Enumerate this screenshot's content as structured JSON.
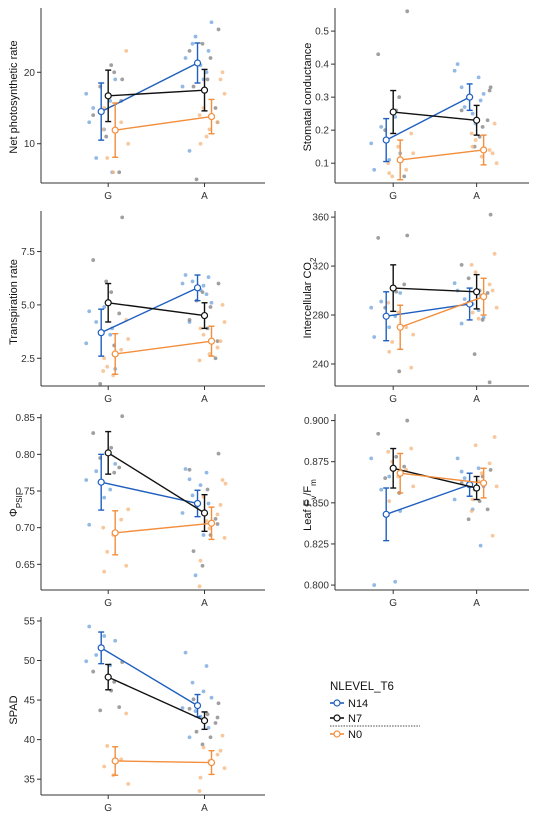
{
  "colors": {
    "N14": "#1f5fbf",
    "N7": "#111111",
    "N0": "#f28e3c",
    "raw_N14": "#6fa3dc",
    "raw_N7": "#808080",
    "raw_N0": "#f6b47a"
  },
  "legend": {
    "title": "NLEVEL_T6",
    "items": [
      {
        "key": "N14",
        "label": "N14"
      },
      {
        "key": "N7",
        "label": "N7"
      },
      {
        "key": "N0",
        "label": "N0"
      }
    ]
  },
  "chart_data": [
    {
      "type": "line",
      "id": "net-photosynthetic-rate",
      "ylabel": "Net photosynthetic rate",
      "categories": [
        "G",
        "A"
      ],
      "ylim": [
        4.5,
        29
      ],
      "yticks": [
        10,
        20
      ],
      "ytick_labels": [
        "10",
        "20"
      ],
      "series": [
        {
          "name": "N14",
          "means": [
            14.5,
            21.3
          ],
          "err": [
            4.0,
            2.8
          ],
          "raw": [
            [
              13,
              16,
              8,
              19,
              17,
              12,
              6,
              15
            ],
            [
              22,
              20,
              24,
              27,
              18,
              21,
              23,
              9,
              19,
              25
            ]
          ]
        },
        {
          "name": "N7",
          "means": [
            16.7,
            17.5
          ],
          "err": [
            3.6,
            2.9
          ],
          "raw": [
            [
              19,
              14,
              21,
              6,
              18,
              20,
              11,
              16
            ],
            [
              26,
              23,
              19,
              15,
              5,
              22,
              24,
              13,
              18
            ]
          ]
        },
        {
          "name": "N0",
          "means": [
            11.9,
            13.8
          ],
          "err": [
            3.8,
            2.4
          ],
          "raw": [
            [
              23,
              8,
              13,
              6,
              10,
              15,
              12
            ],
            [
              20,
              15,
              13,
              12,
              17,
              10,
              14,
              19,
              11
            ]
          ]
        }
      ]
    },
    {
      "type": "line",
      "id": "stomatal-conductance",
      "ylabel": "Stomatal conductance",
      "categories": [
        "G",
        "A"
      ],
      "ylim": [
        0.04,
        0.57
      ],
      "yticks": [
        0.1,
        0.2,
        0.3,
        0.4,
        0.5
      ],
      "ytick_labels": [
        "0.1",
        "0.2",
        "0.3",
        "0.4",
        "0.5"
      ],
      "series": [
        {
          "name": "N14",
          "means": [
            0.17,
            0.3
          ],
          "err": [
            0.065,
            0.04
          ],
          "raw": [
            [
              0.08,
              0.24,
              0.21,
              0.13,
              0.16,
              0.11
            ],
            [
              0.4,
              0.36,
              0.27,
              0.31,
              0.38,
              0.25,
              0.29,
              0.33,
              0.22
            ]
          ]
        },
        {
          "name": "N7",
          "means": [
            0.255,
            0.23
          ],
          "err": [
            0.065,
            0.045
          ],
          "raw": [
            [
              0.56,
              0.43,
              0.26,
              0.06,
              0.2,
              0.3
            ],
            [
              0.33,
              0.26,
              0.18,
              0.23,
              0.3,
              0.21,
              0.15,
              0.32
            ]
          ]
        },
        {
          "name": "N0",
          "means": [
            0.11,
            0.14
          ],
          "err": [
            0.06,
            0.045
          ],
          "raw": [
            [
              0.19,
              0.06,
              0.08,
              0.15,
              0.13,
              0.07,
              0.1
            ],
            [
              0.22,
              0.17,
              0.14,
              0.12,
              0.1,
              0.15,
              0.19,
              0.13
            ]
          ]
        }
      ]
    },
    {
      "type": "line",
      "id": "transpiration-rate",
      "ylabel": "Transpiration rate",
      "categories": [
        "G",
        "A"
      ],
      "ylim": [
        1.2,
        9.4
      ],
      "yticks": [
        2.5,
        5.0,
        7.5
      ],
      "ytick_labels": [
        "2.5",
        "5.0",
        "7.5"
      ],
      "series": [
        {
          "name": "N14",
          "means": [
            3.7,
            5.8
          ],
          "err": [
            1.1,
            0.6
          ],
          "raw": [
            [
              4.7,
              3.6,
              4.2,
              2.0,
              3.2,
              4.9,
              3.9
            ],
            [
              6.4,
              5.5,
              6.1,
              5.1,
              6.0,
              5.7,
              6.3,
              4.2,
              5.9
            ]
          ]
        },
        {
          "name": "N7",
          "means": [
            5.1,
            4.5
          ],
          "err": [
            0.9,
            0.6
          ],
          "raw": [
            [
              9.1,
              7.1,
              5.6,
              4.6,
              1.3,
              3.1,
              6.1
            ],
            [
              6.0,
              4.3,
              3.9,
              2.5,
              5.2,
              4.9,
              5.6,
              3.3
            ]
          ]
        },
        {
          "name": "N0",
          "means": [
            2.7,
            3.3
          ],
          "err": [
            0.95,
            0.7
          ],
          "raw": [
            [
              4.3,
              2.1,
              2.9,
              1.7,
              3.4,
              2.5,
              1.9
            ],
            [
              5.0,
              3.6,
              3.0,
              2.7,
              4.2,
              3.9,
              2.4,
              3.3
            ]
          ]
        }
      ]
    },
    {
      "type": "line",
      "id": "intercellular-co2",
      "ylabel": "Intercellular CO₂",
      "categories": [
        "G",
        "A"
      ],
      "ylim": [
        222,
        365
      ],
      "yticks": [
        240,
        280,
        320,
        360
      ],
      "ytick_labels": [
        "240",
        "280",
        "320",
        "360"
      ],
      "series": [
        {
          "name": "N14",
          "means": [
            279,
            289
          ],
          "err": [
            20,
            13
          ],
          "raw": [
            [
              262,
              279,
              291,
              298,
              286,
              270
            ],
            [
              300,
              284,
              293,
              278,
              306,
              289,
              296,
              273
            ]
          ]
        },
        {
          "name": "N7",
          "means": [
            302,
            299
          ],
          "err": [
            19,
            14
          ],
          "raw": [
            [
              345,
              343,
              299,
              305,
              286,
              234
            ],
            [
              362,
              321,
              300,
              298,
              310,
              276,
              248,
              225
            ]
          ]
        },
        {
          "name": "N0",
          "means": [
            270,
            295
          ],
          "err": [
            18,
            15
          ],
          "raw": [
            [
              237,
              258,
              270,
              282,
              264,
              250,
              290
            ],
            [
              330,
              315,
              305,
              296,
              286,
              282,
              321,
              300,
              277
            ]
          ]
        }
      ]
    },
    {
      "type": "line",
      "id": "phi-psii",
      "ylabel": "ΦPSII",
      "categories": [
        "G",
        "A"
      ],
      "ylim": [
        0.615,
        0.855
      ],
      "yticks": [
        0.65,
        0.7,
        0.75,
        0.8,
        0.85
      ],
      "ytick_labels": [
        "0.65",
        "0.70",
        "0.75",
        "0.80",
        "0.85"
      ],
      "series": [
        {
          "name": "N14",
          "means": [
            0.762,
            0.733
          ],
          "err": [
            0.038,
            0.018
          ],
          "raw": [
            [
              0.704,
              0.752,
              0.777,
              0.787,
              0.765,
              0.741
            ],
            [
              0.78,
              0.775,
              0.744,
              0.708,
              0.72,
              0.758,
              0.733,
              0.766,
              0.69,
              0.635
            ]
          ]
        },
        {
          "name": "N7",
          "means": [
            0.802,
            0.72
          ],
          "err": [
            0.029,
            0.025
          ],
          "raw": [
            [
              0.852,
              0.829,
              0.809,
              0.782,
              0.795,
              0.775
            ],
            [
              0.801,
              0.779,
              0.752,
              0.712,
              0.73,
              0.69,
              0.648,
              0.705,
              0.668
            ]
          ]
        },
        {
          "name": "N0",
          "means": [
            0.693,
            0.706
          ],
          "err": [
            0.03,
            0.022
          ],
          "raw": [
            [
              0.648,
              0.667,
              0.711,
              0.69,
              0.725,
              0.64,
              0.7
            ],
            [
              0.765,
              0.742,
              0.718,
              0.699,
              0.686,
              0.655,
              0.62,
              0.731,
              0.709,
              0.76
            ]
          ]
        }
      ]
    },
    {
      "type": "line",
      "id": "leaf-fv-fm",
      "ylabel": "Leaf Fv/Fm",
      "categories": [
        "G",
        "A"
      ],
      "ylim": [
        0.797,
        0.904
      ],
      "yticks": [
        0.8,
        0.825,
        0.85,
        0.875,
        0.9
      ],
      "ytick_labels": [
        "0.800",
        "0.825",
        "0.850",
        "0.875",
        "0.900"
      ],
      "series": [
        {
          "name": "N14",
          "means": [
            0.843,
            0.861
          ],
          "err": [
            0.016,
            0.007
          ],
          "raw": [
            [
              0.8,
              0.802,
              0.858,
              0.845,
              0.877,
              0.866
            ],
            [
              0.877,
              0.871,
              0.865,
              0.86,
              0.852,
              0.846,
              0.824,
              0.869
            ]
          ]
        },
        {
          "name": "N7",
          "means": [
            0.871,
            0.859
          ],
          "err": [
            0.012,
            0.007
          ],
          "raw": [
            [
              0.9,
              0.892,
              0.878,
              0.872,
              0.865,
              0.856
            ],
            [
              0.87,
              0.862,
              0.851,
              0.846,
              0.84,
              0.866,
              0.858
            ]
          ]
        },
        {
          "name": "N0",
          "means": [
            0.868,
            0.862
          ],
          "err": [
            0.012,
            0.009
          ],
          "raw": [
            [
              0.883,
              0.875,
              0.87,
              0.866,
              0.86,
              0.851,
              0.881
            ],
            [
              0.89,
              0.885,
              0.874,
              0.868,
              0.86,
              0.852,
              0.845,
              0.83,
              0.863
            ]
          ]
        }
      ]
    },
    {
      "type": "line",
      "id": "spad",
      "ylabel": "SPAD",
      "categories": [
        "G",
        "A"
      ],
      "ylim": [
        33,
        55.5
      ],
      "yticks": [
        35,
        40,
        45,
        50,
        55
      ],
      "ytick_labels": [
        "35",
        "40",
        "45",
        "50",
        "55"
      ],
      "series": [
        {
          "name": "N14",
          "means": [
            51.6,
            44.3
          ],
          "err": [
            2.0,
            1.4
          ],
          "raw": [
            [
              54.3,
              49.4,
              50.7,
              52.5,
              49.9,
              53.1
            ],
            [
              51.0,
              49.3,
              47.2,
              45.3,
              44.0,
              42.9,
              41.5,
              40.3,
              46.1,
              43.6
            ]
          ]
        },
        {
          "name": "N7",
          "means": [
            47.9,
            42.4
          ],
          "err": [
            1.6,
            1.1
          ],
          "raw": [
            [
              49.8,
              48.6,
              46.2,
              44.1,
              43.7,
              47.3
            ],
            [
              44.6,
              43.9,
              43.2,
              42.1,
              41.0,
              40.3,
              39.4,
              42.8,
              45.1
            ]
          ]
        },
        {
          "name": "N0",
          "means": [
            37.3,
            37.1
          ],
          "err": [
            1.8,
            1.5
          ],
          "raw": [
            [
              43.3,
              39.2,
              37.5,
              35.5,
              34.4,
              36.6
            ],
            [
              40.5,
              39.0,
              38.1,
              37.3,
              36.4,
              35.2,
              33.5,
              38.6
            ]
          ]
        }
      ]
    }
  ]
}
